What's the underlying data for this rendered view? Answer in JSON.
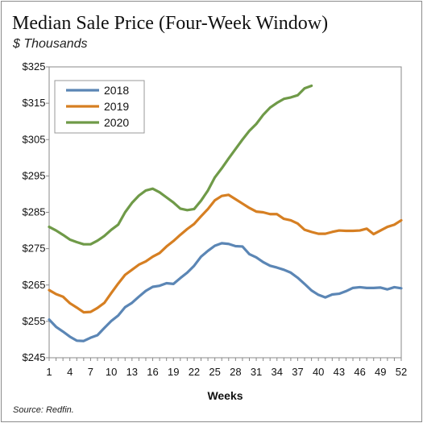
{
  "chart_data": {
    "type": "line",
    "title": "Median Sale Price (Four-Week Window)",
    "subtitle": "$ Thousands",
    "source": "Source: Redfin.",
    "xlabel": "Weeks",
    "ylabel": "",
    "xlim": [
      1,
      52
    ],
    "ylim": [
      245,
      325
    ],
    "x_ticks": [
      1,
      4,
      7,
      10,
      13,
      16,
      19,
      22,
      25,
      28,
      31,
      34,
      37,
      40,
      43,
      46,
      49,
      52
    ],
    "y_ticks": [
      245,
      255,
      265,
      275,
      285,
      295,
      305,
      315,
      325
    ],
    "y_tick_labels": [
      "$245",
      "$255",
      "$265",
      "$275",
      "$285",
      "$295",
      "$305",
      "$315",
      "$325"
    ],
    "grid": false,
    "legend_position": "top-left",
    "series": [
      {
        "name": "2018",
        "color": "#5b86b5",
        "x": [
          1,
          2,
          3,
          4,
          5,
          6,
          7,
          8,
          9,
          10,
          11,
          12,
          13,
          14,
          15,
          16,
          17,
          18,
          19,
          20,
          21,
          22,
          23,
          24,
          25,
          26,
          27,
          28,
          29,
          30,
          31,
          32,
          33,
          34,
          35,
          36,
          37,
          38,
          39,
          40,
          41,
          42,
          43,
          44,
          45,
          46,
          47,
          48,
          49,
          50,
          51,
          52
        ],
        "values": [
          255.5,
          253.5,
          252.2,
          250.8,
          249.7,
          249.6,
          250.5,
          251.2,
          253.2,
          255.1,
          256.6,
          258.9,
          260.1,
          261.8,
          263.4,
          264.5,
          264.8,
          265.5,
          265.3,
          266.9,
          268.4,
          270.3,
          272.8,
          274.4,
          275.8,
          276.5,
          276.3,
          275.7,
          275.6,
          273.5,
          272.6,
          271.3,
          270.3,
          269.8,
          269.2,
          268.4,
          267.0,
          265.3,
          263.5,
          262.3,
          261.6,
          262.4,
          262.6,
          263.3,
          264.2,
          264.4,
          264.2,
          264.2,
          264.3,
          263.8,
          264.4,
          264.1
        ]
      },
      {
        "name": "2019",
        "color": "#d67f22",
        "x": [
          1,
          2,
          3,
          4,
          5,
          6,
          7,
          8,
          9,
          10,
          11,
          12,
          13,
          14,
          15,
          16,
          17,
          18,
          19,
          20,
          21,
          22,
          23,
          24,
          25,
          26,
          27,
          28,
          29,
          30,
          31,
          32,
          33,
          34,
          35,
          36,
          37,
          38,
          39,
          40,
          41,
          42,
          43,
          44,
          45,
          46,
          47,
          48,
          49,
          50,
          51,
          52
        ],
        "values": [
          263.6,
          262.5,
          261.8,
          260.0,
          258.8,
          257.5,
          257.6,
          258.7,
          260.1,
          262.8,
          265.4,
          267.8,
          269.2,
          270.6,
          271.5,
          272.8,
          273.8,
          275.6,
          277.1,
          278.8,
          280.4,
          281.8,
          283.9,
          285.9,
          288.3,
          289.5,
          289.8,
          288.6,
          287.4,
          286.2,
          285.2,
          285.0,
          284.5,
          284.5,
          283.2,
          282.8,
          281.9,
          280.2,
          279.6,
          279.1,
          279.1,
          279.6,
          280.0,
          279.9,
          279.9,
          280.0,
          280.5,
          279.0,
          280.0,
          281.0,
          281.6,
          282.8
        ]
      },
      {
        "name": "2020",
        "color": "#6f9a48",
        "x": [
          1,
          2,
          3,
          4,
          5,
          6,
          7,
          8,
          9,
          10,
          11,
          12,
          13,
          14,
          15,
          16,
          17,
          18,
          19,
          20,
          21,
          22,
          23,
          24,
          25,
          26,
          27,
          28,
          29,
          30,
          31,
          32,
          33,
          34,
          35,
          36,
          37,
          38,
          39
        ],
        "values": [
          281.0,
          280.0,
          278.8,
          277.5,
          276.8,
          276.2,
          276.2,
          277.2,
          278.5,
          280.2,
          281.6,
          285.0,
          287.6,
          289.6,
          291.0,
          291.5,
          290.5,
          289.1,
          287.7,
          286.0,
          285.6,
          285.9,
          288.2,
          291.0,
          294.6,
          297.1,
          299.8,
          302.4,
          305.0,
          307.4,
          309.3,
          311.8,
          313.8,
          315.1,
          316.2,
          316.6,
          317.2,
          319.1,
          319.8
        ]
      }
    ]
  }
}
